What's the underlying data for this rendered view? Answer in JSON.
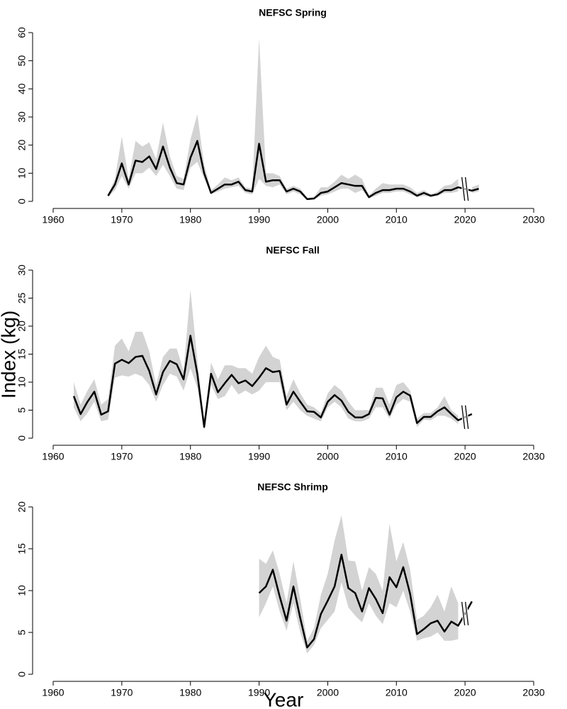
{
  "y_label": "Index  (kg)",
  "x_label": "Year",
  "chart_data": [
    {
      "type": "line",
      "title": "NEFSC Spring",
      "x": [
        1968,
        1969,
        1970,
        1971,
        1972,
        1973,
        1974,
        1975,
        1976,
        1977,
        1978,
        1979,
        1980,
        1981,
        1982,
        1983,
        1984,
        1985,
        1986,
        1987,
        1988,
        1989,
        1990,
        1991,
        1992,
        1993,
        1994,
        1995,
        1996,
        1997,
        1998,
        1999,
        2000,
        2001,
        2002,
        2003,
        2004,
        2005,
        2006,
        2007,
        2008,
        2009,
        2010,
        2011,
        2012,
        2013,
        2014,
        2015,
        2016,
        2017,
        2018,
        2019,
        2020,
        2021,
        2022
      ],
      "values": [
        2,
        6,
        13.5,
        6,
        14.5,
        14,
        16,
        11.5,
        19.5,
        12,
        6.5,
        6,
        15.5,
        21.5,
        10,
        3,
        4.5,
        6,
        6,
        7,
        4,
        3.5,
        20.5,
        7,
        7.5,
        7.5,
        3.5,
        4.5,
        3.5,
        0.8,
        1,
        3,
        3.5,
        5,
        6.5,
        6,
        5.5,
        5.5,
        1.5,
        3,
        4,
        4,
        4.5,
        4.5,
        3.5,
        2,
        3,
        2,
        2.5,
        4,
        4,
        5,
        null,
        3.8,
        4.5
      ],
      "upper": [
        2.5,
        8,
        23,
        8,
        21.5,
        19.5,
        21,
        15,
        28,
        16,
        9,
        8,
        22,
        31,
        13,
        4,
        6,
        8.5,
        7.5,
        8.5,
        5,
        4.5,
        58,
        10,
        10,
        9,
        4.5,
        5.5,
        4.5,
        1.2,
        1.5,
        5,
        5,
        7,
        9.5,
        8,
        9.5,
        8,
        2,
        4.5,
        6.5,
        6,
        6,
        6,
        5,
        3,
        4,
        2.5,
        3.5,
        5.5,
        6,
        8,
        null,
        5,
        6
      ],
      "lower": [
        1.5,
        4,
        9,
        4.5,
        10,
        10,
        12,
        9,
        13,
        9,
        4.5,
        4,
        12,
        14,
        8,
        2.5,
        3.5,
        4.5,
        5,
        5.5,
        3,
        2.5,
        8,
        5.5,
        5,
        6,
        2.5,
        3.5,
        2.5,
        0.5,
        0.7,
        2,
        2.5,
        3.5,
        4.5,
        4.5,
        3,
        4,
        1,
        2,
        3,
        3,
        3.5,
        3.5,
        2.5,
        1.5,
        2,
        1.5,
        2,
        3,
        3,
        3.5,
        null,
        3,
        3.5
      ],
      "color": "#000000",
      "band_color": "#d3d3d3",
      "xlim": [
        1960,
        2030
      ],
      "xticks": [
        1960,
        1970,
        1980,
        1990,
        2000,
        2010,
        2020,
        2030
      ],
      "ylim": [
        0,
        60
      ],
      "yticks": [
        0,
        10,
        20,
        30,
        40,
        50,
        60
      ]
    },
    {
      "type": "line",
      "title": "NEFSC Fall",
      "x": [
        1963,
        1964,
        1965,
        1966,
        1967,
        1968,
        1969,
        1970,
        1971,
        1972,
        1973,
        1974,
        1975,
        1976,
        1977,
        1978,
        1979,
        1980,
        1981,
        1982,
        1983,
        1984,
        1985,
        1986,
        1987,
        1988,
        1989,
        1990,
        1991,
        1992,
        1993,
        1994,
        1995,
        1996,
        1997,
        1998,
        1999,
        2000,
        2001,
        2002,
        2003,
        2004,
        2005,
        2006,
        2007,
        2008,
        2009,
        2010,
        2011,
        2012,
        2013,
        2014,
        2015,
        2016,
        2017,
        2018,
        2019,
        2020,
        2021
      ],
      "values": [
        7.5,
        4.3,
        6.5,
        8.3,
        4.2,
        4.8,
        13.3,
        14,
        13.4,
        14.5,
        14.7,
        12,
        7.8,
        11.8,
        13.8,
        13.2,
        10.5,
        18.3,
        11.5,
        2,
        11.5,
        8.2,
        9.8,
        11.3,
        9.8,
        10.3,
        9.3,
        10.8,
        12.5,
        11.8,
        12,
        6,
        8.3,
        6.5,
        4.8,
        4.7,
        3.7,
        6.5,
        7.7,
        6.7,
        4.7,
        3.7,
        3.7,
        4.3,
        7.2,
        7.1,
        4.2,
        7.3,
        8.3,
        7.6,
        2.7,
        3.8,
        3.8,
        4.8,
        5.5,
        4.3,
        3.2,
        null,
        4.3
      ],
      "upper": [
        10,
        6,
        8.5,
        10.5,
        6,
        7,
        16.5,
        17.8,
        15.5,
        19,
        19,
        15.5,
        9.5,
        14.5,
        16,
        16,
        12,
        26.5,
        14,
        2.5,
        13.5,
        10.5,
        13,
        13,
        12.5,
        12.5,
        11.5,
        14.5,
        16.5,
        14.5,
        14,
        7.5,
        10.5,
        8,
        6,
        5.5,
        4.5,
        8,
        9.5,
        8.5,
        6.5,
        5,
        5,
        5,
        9,
        9,
        6,
        9.5,
        10,
        8.5,
        3.5,
        4.5,
        4.5,
        5.5,
        7.5,
        5,
        4,
        null,
        5
      ],
      "lower": [
        5.5,
        3,
        4.5,
        6.5,
        3,
        3.3,
        10.8,
        11.2,
        11,
        11.5,
        11,
        9.5,
        6.5,
        9.5,
        11.5,
        11,
        8.5,
        12.5,
        9,
        1.5,
        9.5,
        7,
        7.5,
        9.5,
        7.8,
        8.5,
        7.8,
        8.5,
        10,
        10,
        10,
        5,
        6.5,
        5,
        4,
        3.5,
        3,
        5.5,
        6.5,
        5.5,
        3.5,
        3,
        3,
        3.5,
        5.5,
        5.5,
        3.5,
        6,
        7,
        6.5,
        2,
        3.3,
        3.2,
        4,
        4,
        3.5,
        2.5,
        null,
        3.5
      ],
      "color": "#000000",
      "band_color": "#d3d3d3",
      "xlim": [
        1960,
        2030
      ],
      "xticks": [
        1960,
        1970,
        1980,
        1990,
        2000,
        2010,
        2020,
        2030
      ],
      "ylim": [
        0,
        30
      ],
      "yticks": [
        0,
        5,
        10,
        15,
        20,
        25,
        30
      ]
    },
    {
      "type": "line",
      "title": "NEFSC Shrimp",
      "x": [
        1990,
        1991,
        1992,
        1993,
        1994,
        1995,
        1996,
        1997,
        1998,
        1999,
        2000,
        2001,
        2002,
        2003,
        2004,
        2005,
        2006,
        2007,
        2008,
        2009,
        2010,
        2011,
        2012,
        2013,
        2014,
        2015,
        2016,
        2017,
        2018,
        2019,
        2020,
        2021
      ],
      "values": [
        9.7,
        10.5,
        12.5,
        9.3,
        6.4,
        10.5,
        6.7,
        3.2,
        4.2,
        7.2,
        8.8,
        10.5,
        14.3,
        10.3,
        9.7,
        7.5,
        10.3,
        9,
        7.3,
        11.6,
        10.4,
        12.8,
        9.6,
        4.8,
        5.4,
        6.1,
        6.4,
        5.1,
        6.3,
        5.8,
        null,
        8.7
      ],
      "upper": [
        13.8,
        13.2,
        14.8,
        12,
        8.5,
        13.5,
        9,
        4,
        5.5,
        9.5,
        12,
        16,
        19,
        13.6,
        13.5,
        10,
        12.8,
        12,
        10,
        18,
        13.5,
        15.8,
        12.5,
        6.5,
        7,
        8,
        9.5,
        7.5,
        10.5,
        8.5,
        null,
        11.5
      ],
      "lower": [
        6.8,
        8.5,
        10.5,
        7.5,
        5.2,
        8.5,
        5,
        2.5,
        3.5,
        5.5,
        6.5,
        7.5,
        11,
        8,
        7,
        6.2,
        8.5,
        7,
        6,
        8.5,
        8,
        10,
        7.5,
        4,
        4.3,
        4.5,
        5,
        4,
        4,
        4.2,
        null,
        6
      ],
      "color": "#000000",
      "band_color": "#d3d3d3",
      "xlim": [
        1960,
        2030
      ],
      "xticks": [
        1960,
        1970,
        1980,
        1990,
        2000,
        2010,
        2020,
        2030
      ],
      "ylim": [
        0,
        20
      ],
      "yticks": [
        0,
        5,
        10,
        15,
        20
      ]
    }
  ]
}
